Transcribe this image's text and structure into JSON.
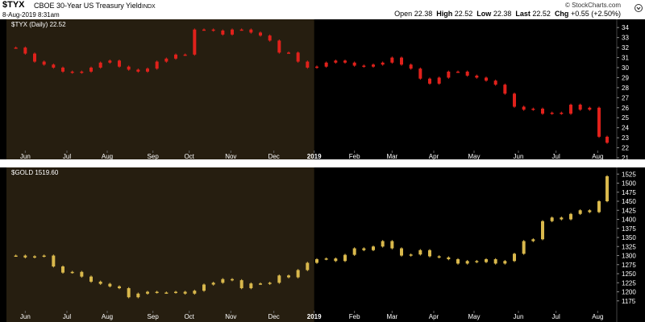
{
  "header": {
    "symbol": "$TYX",
    "description": "CBOE 30-Year US Treasury Yield",
    "exchange": "INDX",
    "date": "8-Aug-2019 8:31am",
    "open_label": "Open",
    "open": "22.38",
    "high_label": "High",
    "high": "22.52",
    "low_label": "Low",
    "low": "22.38",
    "last_label": "Last",
    "last": "22.52",
    "chg_label": "Chg",
    "chg": "+0.55 (+2.50%)",
    "logo": "© StockCharts.com"
  },
  "colors": {
    "background": "#000000",
    "shaded_region": "#261e10",
    "tyx_candle": "#e0211b",
    "gold_bar": "#d9b84c",
    "axis_text": "#ffffff"
  },
  "chart_data": [
    {
      "type": "line",
      "panel_label": "$TYX (Daily) 22.52",
      "series": [
        {
          "name": "$TYX",
          "x": [
            "2018-05-25",
            "2018-06-01",
            "2018-06-08",
            "2018-06-15",
            "2018-06-22",
            "2018-06-29",
            "2018-07-06",
            "2018-07-13",
            "2018-07-20",
            "2018-07-27",
            "2018-08-03",
            "2018-08-10",
            "2018-08-17",
            "2018-08-24",
            "2018-08-31",
            "2018-09-07",
            "2018-09-14",
            "2018-09-21",
            "2018-09-28",
            "2018-10-05",
            "2018-10-12",
            "2018-10-19",
            "2018-10-26",
            "2018-11-02",
            "2018-11-09",
            "2018-11-16",
            "2018-11-23",
            "2018-11-30",
            "2018-12-07",
            "2018-12-14",
            "2018-12-21",
            "2018-12-28",
            "2019-01-04",
            "2019-01-11",
            "2019-01-18",
            "2019-01-25",
            "2019-02-01",
            "2019-02-08",
            "2019-02-15",
            "2019-02-22",
            "2019-03-01",
            "2019-03-08",
            "2019-03-15",
            "2019-03-22",
            "2019-03-29",
            "2019-04-05",
            "2019-04-12",
            "2019-04-19",
            "2019-04-26",
            "2019-05-03",
            "2019-05-10",
            "2019-05-17",
            "2019-05-24",
            "2019-05-31",
            "2019-06-07",
            "2019-06-14",
            "2019-06-21",
            "2019-06-28",
            "2019-07-05",
            "2019-07-12",
            "2019-07-19",
            "2019-07-26",
            "2019-08-02",
            "2019-08-08"
          ],
          "values": [
            32.0,
            31.4,
            30.6,
            30.3,
            30.0,
            29.6,
            29.5,
            29.6,
            30.0,
            30.5,
            30.7,
            30.1,
            29.8,
            29.6,
            29.9,
            30.6,
            30.9,
            31.3,
            31.3,
            33.8,
            33.8,
            33.7,
            33.3,
            33.8,
            33.8,
            33.5,
            33.2,
            32.7,
            31.5,
            31.5,
            30.6,
            30.0,
            30.1,
            30.5,
            30.7,
            30.5,
            30.2,
            30.1,
            30.3,
            30.5,
            31.0,
            30.3,
            29.9,
            28.9,
            28.4,
            29.0,
            29.6,
            29.6,
            29.2,
            29.0,
            28.7,
            28.3,
            27.4,
            26.1,
            25.8,
            25.9,
            25.4,
            25.5,
            25.4,
            26.3,
            25.8,
            26.0,
            23.1,
            22.5
          ],
          "color": "#e0211b"
        }
      ],
      "ylim": [
        21,
        34.5
      ],
      "y_ticks": [
        21,
        22,
        23,
        24,
        25,
        26,
        27,
        28,
        29,
        30,
        31,
        32,
        33,
        34
      ],
      "grid": false
    },
    {
      "type": "line",
      "panel_label": "$GOLD 1519.60",
      "series": [
        {
          "name": "$GOLD",
          "x": [
            "2018-05-25",
            "2018-06-01",
            "2018-06-08",
            "2018-06-15",
            "2018-06-22",
            "2018-06-29",
            "2018-07-06",
            "2018-07-13",
            "2018-07-20",
            "2018-07-27",
            "2018-08-03",
            "2018-08-10",
            "2018-08-17",
            "2018-08-24",
            "2018-08-31",
            "2018-09-07",
            "2018-09-14",
            "2018-09-21",
            "2018-09-28",
            "2018-10-05",
            "2018-10-12",
            "2018-10-19",
            "2018-10-26",
            "2018-11-02",
            "2018-11-09",
            "2018-11-16",
            "2018-11-23",
            "2018-11-30",
            "2018-12-07",
            "2018-12-14",
            "2018-12-21",
            "2018-12-28",
            "2019-01-04",
            "2019-01-11",
            "2019-01-18",
            "2019-01-25",
            "2019-02-01",
            "2019-02-08",
            "2019-02-15",
            "2019-02-22",
            "2019-03-01",
            "2019-03-08",
            "2019-03-15",
            "2019-03-22",
            "2019-03-29",
            "2019-04-05",
            "2019-04-12",
            "2019-04-19",
            "2019-04-26",
            "2019-05-03",
            "2019-05-10",
            "2019-05-17",
            "2019-05-24",
            "2019-05-31",
            "2019-06-07",
            "2019-06-14",
            "2019-06-21",
            "2019-06-28",
            "2019-07-05",
            "2019-07-12",
            "2019-07-19",
            "2019-07-26",
            "2019-08-02",
            "2019-08-08"
          ],
          "values": [
            1300,
            1295,
            1298,
            1300,
            1270,
            1253,
            1255,
            1242,
            1228,
            1222,
            1215,
            1210,
            1185,
            1195,
            1200,
            1198,
            1198,
            1200,
            1195,
            1203,
            1220,
            1225,
            1235,
            1232,
            1210,
            1223,
            1222,
            1225,
            1245,
            1240,
            1260,
            1280,
            1290,
            1292,
            1285,
            1302,
            1320,
            1315,
            1325,
            1340,
            1320,
            1300,
            1303,
            1315,
            1298,
            1295,
            1290,
            1278,
            1285,
            1282,
            1290,
            1278,
            1285,
            1305,
            1340,
            1345,
            1395,
            1405,
            1400,
            1415,
            1425,
            1420,
            1450,
            1519
          ],
          "color": "#d9b84c"
        }
      ],
      "ylim": [
        1170,
        1530
      ],
      "y_ticks": [
        1175,
        1200,
        1225,
        1250,
        1275,
        1300,
        1325,
        1350,
        1375,
        1400,
        1425,
        1450,
        1475,
        1500,
        1525
      ],
      "grid": false
    }
  ],
  "x_axis": {
    "ticks": [
      {
        "label": "Jun",
        "date": "2018-06-01",
        "bold": false
      },
      {
        "label": "Jul",
        "date": "2018-07-02",
        "bold": false
      },
      {
        "label": "Aug",
        "date": "2018-08-01",
        "bold": false
      },
      {
        "label": "Sep",
        "date": "2018-09-04",
        "bold": false
      },
      {
        "label": "Oct",
        "date": "2018-10-01",
        "bold": false
      },
      {
        "label": "Nov",
        "date": "2018-11-01",
        "bold": false
      },
      {
        "label": "Dec",
        "date": "2018-12-03",
        "bold": false
      },
      {
        "label": "2019",
        "date": "2019-01-02",
        "bold": true
      },
      {
        "label": "Feb",
        "date": "2019-02-01",
        "bold": false
      },
      {
        "label": "Mar",
        "date": "2019-03-01",
        "bold": false
      },
      {
        "label": "Apr",
        "date": "2019-04-01",
        "bold": false
      },
      {
        "label": "May",
        "date": "2019-05-01",
        "bold": false
      },
      {
        "label": "Jun",
        "date": "2019-06-03",
        "bold": false
      },
      {
        "label": "Jul",
        "date": "2019-07-01",
        "bold": false
      },
      {
        "label": "Aug",
        "date": "2019-08-01",
        "bold": false
      }
    ],
    "shaded_until": "2019-01-02"
  }
}
